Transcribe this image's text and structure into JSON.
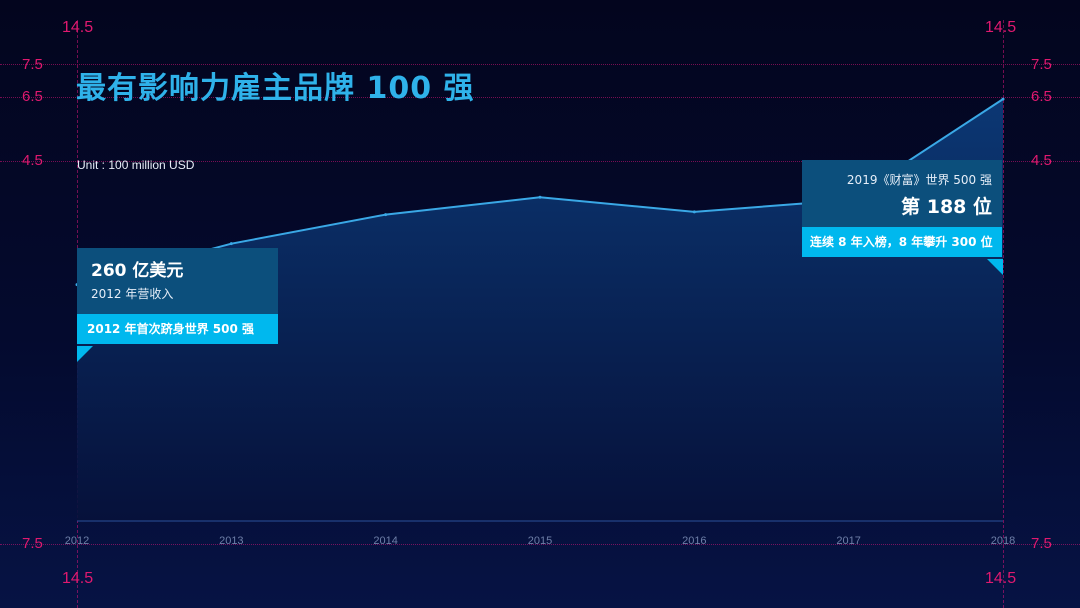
{
  "title": "最有影响力雇主品牌 100 强",
  "unit": "Unit : 100 million USD",
  "ruler": {
    "outer": "14.5",
    "upper": "7.5",
    "mid": "6.5",
    "lower": "4.5",
    "bottom": "7.5"
  },
  "callouts": {
    "left": {
      "value": "260 亿美元",
      "caption": "2012 年营收入",
      "highlight": "2012 年首次跻身世界 500 强"
    },
    "right": {
      "caption": "2019《财富》世界 500 强",
      "value": "第 188 位",
      "highlight": "连续 8 年入榜，8 年攀升 300 位"
    }
  },
  "colors": {
    "background": "#03051e",
    "accent": "#2fb2ea",
    "line": "#3aa8e6",
    "guide": "#e0196f",
    "highlight": "#00b8ee"
  },
  "chart_data": {
    "type": "area",
    "x": [
      "2012",
      "2013",
      "2014",
      "2015",
      "2016",
      "2017",
      "2018"
    ],
    "series": [
      {
        "values": [
          260,
          305,
          337,
          356,
          340,
          353,
          464
        ]
      }
    ],
    "ylim": [
      0,
      540
    ],
    "grid": false,
    "legend": "none"
  }
}
